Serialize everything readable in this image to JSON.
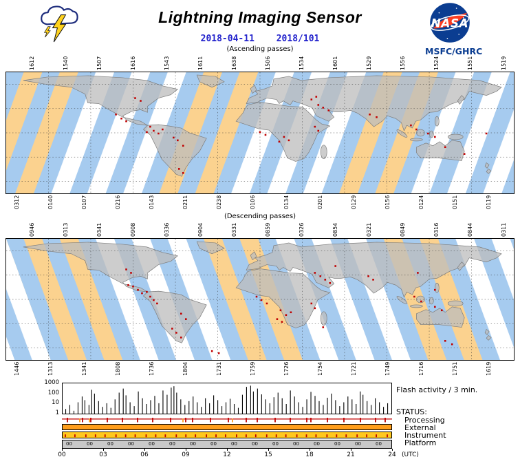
{
  "header": {
    "title": "Lightning Imaging Sensor",
    "date": "2018-04-11",
    "day_of_year": "2018/101",
    "agency": "MSFC/GHRC",
    "nasa_logo_text": "NASA"
  },
  "colors": {
    "swath_blue": "#A6CBEF",
    "day_orange": "#FBD28F",
    "land_gray": "#BCBCBC",
    "flash_red": "#C00000",
    "date_blue": "#2222CC",
    "nasa_blue": "#0B3D91",
    "nasa_red": "#FC3D21",
    "status_external": "#FF9E1B",
    "status_instrument": "#FFC81E",
    "status_platform": "#C9C9C9"
  },
  "maps": [
    {
      "caption": "(Ascending passes)",
      "top_labels": [
        "1612",
        "1540",
        "1507",
        "1616",
        "1543",
        "1611",
        "1638",
        "1506",
        "1534",
        "1601",
        "1529",
        "1556",
        "1524",
        "1551",
        "1519"
      ],
      "bottom_labels": [
        "0312",
        "0140",
        "0107",
        "0216",
        "0143",
        "0211",
        "0238",
        "0106",
        "0134",
        "0201",
        "0129",
        "0156",
        "0124",
        "0151",
        "0119"
      ],
      "flashes": [
        [
          160,
          62
        ],
        [
          168,
          68
        ],
        [
          175,
          72
        ],
        [
          196,
          42
        ],
        [
          188,
          38
        ],
        [
          210,
          80
        ],
        [
          215,
          86
        ],
        [
          222,
          90
        ],
        [
          228,
          84
        ],
        [
          205,
          88
        ],
        [
          250,
          100
        ],
        [
          258,
          108
        ],
        [
          244,
          96
        ],
        [
          258,
          148
        ],
        [
          252,
          142
        ],
        [
          370,
          88
        ],
        [
          378,
          92
        ],
        [
          405,
          95
        ],
        [
          412,
          100
        ],
        [
          398,
          102
        ],
        [
          450,
          80
        ],
        [
          455,
          86
        ],
        [
          462,
          52
        ],
        [
          470,
          56
        ],
        [
          455,
          48
        ],
        [
          445,
          40
        ],
        [
          452,
          36
        ],
        [
          530,
          62
        ],
        [
          540,
          66
        ],
        [
          590,
          78
        ],
        [
          598,
          84
        ],
        [
          615,
          90
        ],
        [
          625,
          95
        ],
        [
          640,
          110
        ],
        [
          668,
          120
        ],
        [
          700,
          90
        ]
      ]
    },
    {
      "caption": "(Descending passes)",
      "top_labels": [
        "0946",
        "0313",
        "0341",
        "0908",
        "0336",
        "0904",
        "0331",
        "0859",
        "0326",
        "0854",
        "0321",
        "0849",
        "0316",
        "0844",
        "0311"
      ],
      "bottom_labels": [
        "1446",
        "1313",
        "1341",
        "1808",
        "1736",
        "1804",
        "1731",
        "1759",
        "1726",
        "1754",
        "1721",
        "1749",
        "1716",
        "1751",
        "1619"
      ],
      "flashes": [
        [
          175,
          45
        ],
        [
          182,
          50
        ],
        [
          185,
          70
        ],
        [
          192,
          75
        ],
        [
          198,
          80
        ],
        [
          205,
          78
        ],
        [
          210,
          85
        ],
        [
          178,
          68
        ],
        [
          215,
          90
        ],
        [
          220,
          95
        ],
        [
          255,
          110
        ],
        [
          262,
          118
        ],
        [
          248,
          138
        ],
        [
          255,
          145
        ],
        [
          242,
          132
        ],
        [
          300,
          165
        ],
        [
          310,
          168
        ],
        [
          365,
          85
        ],
        [
          372,
          90
        ],
        [
          380,
          95
        ],
        [
          400,
          105
        ],
        [
          408,
          112
        ],
        [
          415,
          108
        ],
        [
          395,
          118
        ],
        [
          402,
          122
        ],
        [
          445,
          95
        ],
        [
          450,
          102
        ],
        [
          462,
          130
        ],
        [
          458,
          55
        ],
        [
          465,
          60
        ],
        [
          472,
          65
        ],
        [
          450,
          50
        ],
        [
          480,
          40
        ],
        [
          535,
          60
        ],
        [
          528,
          55
        ],
        [
          600,
          50
        ],
        [
          595,
          85
        ],
        [
          605,
          92
        ],
        [
          625,
          100
        ],
        [
          635,
          105
        ],
        [
          625,
          75
        ],
        [
          640,
          150
        ],
        [
          650,
          155
        ]
      ]
    }
  ],
  "chart_data": {
    "type": "bar",
    "title": "Flash activity / 3 min.",
    "x_label": "(UTC)",
    "x_ticks": [
      "00",
      "03",
      "06",
      "09",
      "12",
      "15",
      "18",
      "21",
      "24"
    ],
    "y_ticks": [
      "1000",
      "100",
      "10",
      "1"
    ],
    "y_scale": "log",
    "x_range_hours": [
      0,
      24
    ],
    "bin_minutes": 3,
    "spikes": [
      [
        0.2,
        3
      ],
      [
        0.5,
        8
      ],
      [
        0.8,
        2
      ],
      [
        1.1,
        15
      ],
      [
        1.4,
        60
      ],
      [
        1.6,
        25
      ],
      [
        1.9,
        8
      ],
      [
        2.1,
        300
      ],
      [
        2.3,
        120
      ],
      [
        2.6,
        20
      ],
      [
        2.9,
        5
      ],
      [
        3.2,
        12
      ],
      [
        3.5,
        4
      ],
      [
        3.8,
        30
      ],
      [
        4.1,
        150
      ],
      [
        4.4,
        400
      ],
      [
        4.6,
        80
      ],
      [
        4.9,
        15
      ],
      [
        5.2,
        6
      ],
      [
        5.5,
        200
      ],
      [
        5.8,
        40
      ],
      [
        6.1,
        10
      ],
      [
        6.4,
        25
      ],
      [
        6.7,
        70
      ],
      [
        7.0,
        12
      ],
      [
        7.3,
        250
      ],
      [
        7.6,
        90
      ],
      [
        7.9,
        500
      ],
      [
        8.1,
        700
      ],
      [
        8.3,
        150
      ],
      [
        8.6,
        30
      ],
      [
        8.9,
        8
      ],
      [
        9.2,
        20
      ],
      [
        9.5,
        60
      ],
      [
        9.8,
        15
      ],
      [
        10.1,
        5
      ],
      [
        10.4,
        40
      ],
      [
        10.7,
        12
      ],
      [
        11.0,
        80
      ],
      [
        11.3,
        25
      ],
      [
        11.6,
        6
      ],
      [
        11.9,
        15
      ],
      [
        12.2,
        35
      ],
      [
        12.5,
        10
      ],
      [
        12.8,
        4
      ],
      [
        13.1,
        90
      ],
      [
        13.4,
        600
      ],
      [
        13.7,
        800
      ],
      [
        13.9,
        200
      ],
      [
        14.2,
        400
      ],
      [
        14.5,
        100
      ],
      [
        14.8,
        30
      ],
      [
        15.1,
        12
      ],
      [
        15.4,
        50
      ],
      [
        15.7,
        150
      ],
      [
        16.0,
        40
      ],
      [
        16.3,
        10
      ],
      [
        16.6,
        250
      ],
      [
        16.9,
        60
      ],
      [
        17.2,
        15
      ],
      [
        17.5,
        5
      ],
      [
        17.8,
        30
      ],
      [
        18.1,
        180
      ],
      [
        18.4,
        70
      ],
      [
        18.7,
        20
      ],
      [
        19.0,
        8
      ],
      [
        19.3,
        45
      ],
      [
        19.6,
        120
      ],
      [
        19.9,
        25
      ],
      [
        20.2,
        6
      ],
      [
        20.5,
        15
      ],
      [
        20.8,
        60
      ],
      [
        21.1,
        30
      ],
      [
        21.4,
        10
      ],
      [
        21.7,
        200
      ],
      [
        21.9,
        90
      ],
      [
        22.2,
        20
      ],
      [
        22.5,
        8
      ],
      [
        22.8,
        40
      ],
      [
        23.1,
        15
      ],
      [
        23.4,
        5
      ],
      [
        23.7,
        12
      ]
    ]
  },
  "status": {
    "heading": "STATUS:",
    "rows": [
      "Processing",
      "External",
      "Instrument",
      "Platform"
    ],
    "processing_marks": [
      0.4,
      1.5,
      2.1,
      3.3,
      4.4,
      5.5,
      6.6,
      7.9,
      9.0,
      9.5,
      10.8,
      12.1,
      13.4,
      14.2,
      15.5,
      16.6,
      17.8,
      18.1,
      19.3,
      20.5,
      21.7,
      22.8,
      23.5
    ],
    "processing_alt_marks": [
      1.3,
      2.0,
      8.8,
      12.4
    ],
    "instrument_marks": [
      0.2,
      0.9,
      1.7,
      2.4,
      3.1,
      3.9,
      4.6,
      5.3,
      6.1,
      6.8,
      7.5,
      8.3,
      9.0,
      9.7,
      10.5,
      11.2,
      11.9,
      12.7,
      13.4,
      14.1,
      14.9,
      15.6,
      16.3,
      17.1,
      17.8,
      18.5,
      19.3,
      20.0,
      20.7,
      21.5,
      22.2,
      22.9,
      23.7
    ],
    "platform_labels": [
      "00",
      "00",
      "00",
      "00",
      "00",
      "00",
      "00",
      "00",
      "00",
      "00",
      "00",
      "00",
      "00",
      "00",
      "00",
      "00"
    ]
  }
}
